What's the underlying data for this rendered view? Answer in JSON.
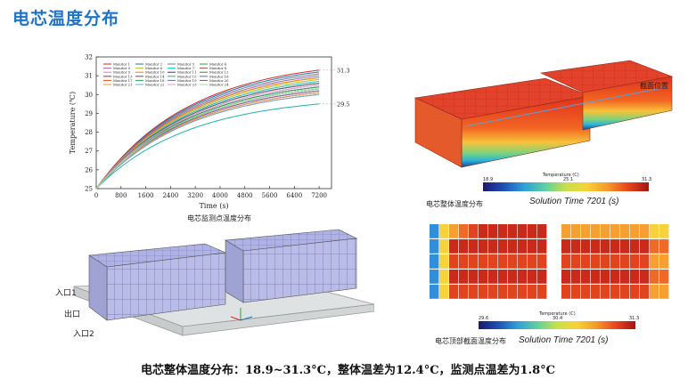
{
  "title": "电芯温度分布",
  "line_chart": {
    "caption": "电芯监测点温度分布",
    "chart_data": {
      "type": "line",
      "xlabel": "Time (s)",
      "ylabel": "Temperature (℃)",
      "xlim": [
        0,
        7600
      ],
      "ylim": [
        25,
        32
      ],
      "xticks": [
        0,
        800,
        1600,
        2400,
        3200,
        4000,
        4800,
        5600,
        6400,
        7200
      ],
      "yticks": [
        25,
        26,
        27,
        28,
        29,
        30,
        31,
        32
      ],
      "legend_position": "top-left",
      "annotations": [
        {
          "text": "31.3",
          "x": 7200,
          "y": 31.3
        },
        {
          "text": "29.5",
          "x": 7200,
          "y": 29.5
        }
      ],
      "series": [
        {
          "name": "Monitor 1",
          "final": 31.3,
          "color": "#d62728"
        },
        {
          "name": "Monitor 2",
          "final": 31.2,
          "color": "#1f77b4"
        },
        {
          "name": "Monitor 3",
          "final": 31.1,
          "color": "#7f7f7f"
        },
        {
          "name": "Monitor 4",
          "final": 30.9,
          "color": "#2ca02c"
        },
        {
          "name": "Monitor 5",
          "final": 31.0,
          "color": "#9467bd"
        },
        {
          "name": "Monitor 6",
          "final": 30.8,
          "color": "#bcbd22"
        },
        {
          "name": "Monitor 7",
          "final": 30.7,
          "color": "#17becf"
        },
        {
          "name": "Monitor 8",
          "final": 30.6,
          "color": "#8c564b"
        },
        {
          "name": "Monitor 9",
          "final": 30.5,
          "color": "#e377c2"
        },
        {
          "name": "Monitor 10",
          "final": 30.9,
          "color": "#ff7f0e"
        },
        {
          "name": "Monitor 11",
          "final": 30.4,
          "color": "#393b79"
        },
        {
          "name": "Monitor 12",
          "final": 30.3,
          "color": "#637939"
        },
        {
          "name": "Monitor 13",
          "final": 30.2,
          "color": "#843c39"
        },
        {
          "name": "Monitor 14",
          "final": 30.3,
          "color": "#7b4173"
        },
        {
          "name": "Monitor 15",
          "final": 29.5,
          "color": "#20b2aa"
        },
        {
          "name": "Monitor 16",
          "final": 30.1,
          "color": "#3182bd"
        },
        {
          "name": "Monitor 17",
          "final": 30.0,
          "color": "#e6550d"
        },
        {
          "name": "Monitor 18",
          "final": 30.4,
          "color": "#31a354"
        },
        {
          "name": "Monitor 19",
          "final": 30.2,
          "color": "#756bb1"
        },
        {
          "name": "Monitor 20",
          "final": 30.6,
          "color": "#636363"
        },
        {
          "name": "Monitor 21",
          "final": 30.1,
          "color": "#fd8d3c"
        },
        {
          "name": "Monitor 22",
          "final": 30.0,
          "color": "#6baed6"
        },
        {
          "name": "Monitor 23",
          "final": 30.5,
          "color": "#de9ed6"
        },
        {
          "name": "Monitor 24",
          "final": 30.3,
          "color": "#a1d99b"
        }
      ]
    }
  },
  "model_3d": {
    "labels": {
      "inlet1": "入口1",
      "outlet": "出口",
      "inlet2": "入口2"
    }
  },
  "overall_contour": {
    "caption": "电芯整体温度分布",
    "section_label": "截面位置",
    "colorbar_title": "Temperature (C)",
    "cb_min": "18.9",
    "cb_mid": "25.1",
    "cb_max": "31.3",
    "solution_time": "Solution Time 7201 (s)"
  },
  "top_contour": {
    "caption": "电芯顶部截面温度分布",
    "colorbar_title": "Temperature (C)",
    "cb_min": "29.6",
    "cb_mid": "30.4",
    "cb_max": "31.3",
    "solution_time": "Solution Time 7201 (s)"
  },
  "summary": "电芯整体温度分布：18.9~31.3°C，整体温差为12.4°C，监测点温差为1.8°C",
  "colors": {
    "title_blue": "#1e73c8"
  }
}
